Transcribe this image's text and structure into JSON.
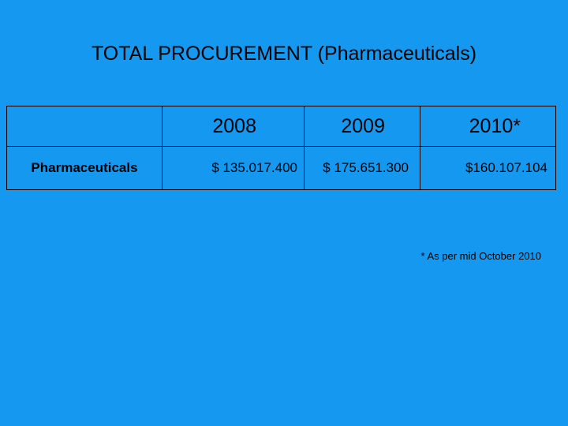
{
  "title": "TOTAL PROCUREMENT (Pharmaceuticals)",
  "table": {
    "header": {
      "label": "",
      "years": [
        "2008",
        "2009",
        "2010*"
      ]
    },
    "rows": [
      {
        "label": "Pharmaceuticals",
        "values": [
          "$ 135.017.400",
          "$ 175.651.300",
          "$160.107.104"
        ]
      }
    ]
  },
  "footnote": "* As per mid October 2010",
  "colors": {
    "background": "#1598f0",
    "text": "#000000",
    "border": "#000000"
  }
}
